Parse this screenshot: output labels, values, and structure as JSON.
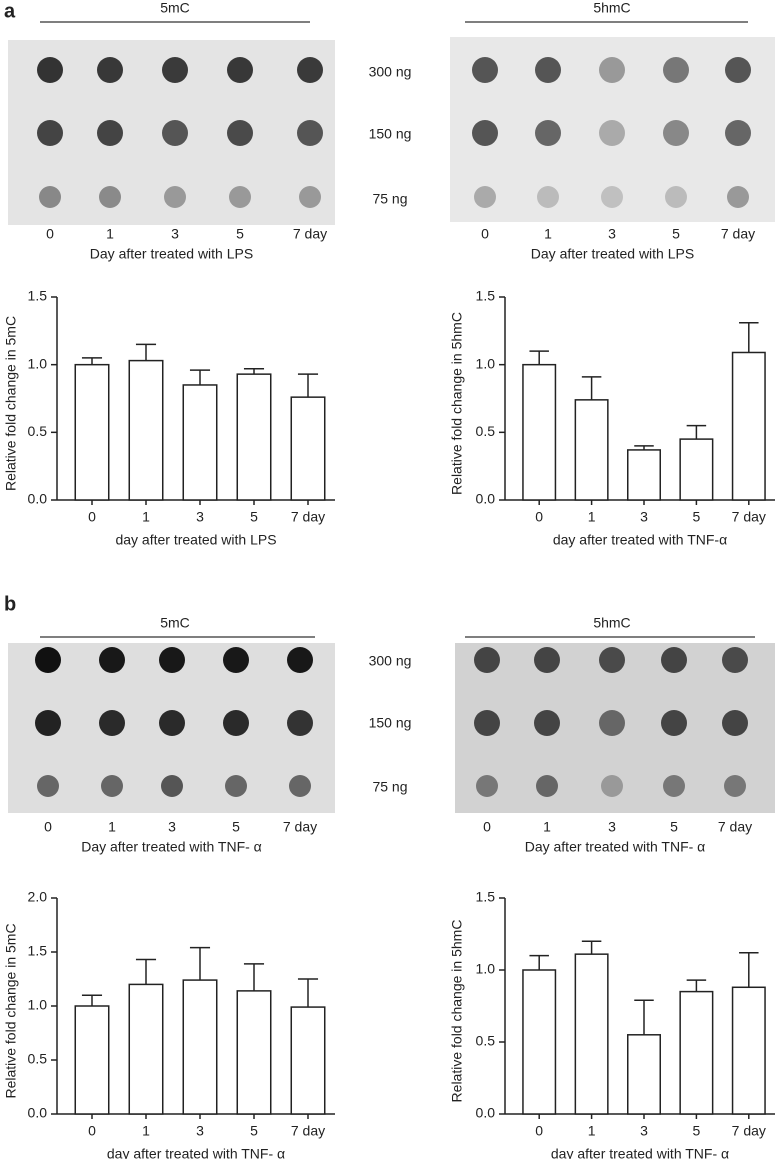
{
  "panels": [
    {
      "label": "a",
      "rows": [
        "300 ng",
        "150 ng",
        "75 ng"
      ],
      "blots": [
        {
          "title": "5mC",
          "categories": [
            "0",
            "1",
            "3",
            "5",
            "7 day"
          ],
          "xlabel": "Day after treated with LPS"
        },
        {
          "title": "5hmC",
          "categories": [
            "0",
            "1",
            "3",
            "5",
            "7 day"
          ],
          "xlabel": "Day after treated with LPS"
        }
      ]
    },
    {
      "label": "b",
      "rows": [
        "300 ng",
        "150 ng",
        "75 ng"
      ],
      "blots": [
        {
          "title": "5mC",
          "categories": [
            "0",
            "1",
            "3",
            "5",
            "7 day"
          ],
          "xlabel": "Day after treated with TNF- α"
        },
        {
          "title": "5hmC",
          "categories": [
            "0",
            "1",
            "3",
            "5",
            "7 day"
          ],
          "xlabel": "Day after treated with TNF- α"
        }
      ]
    }
  ],
  "chart_data": [
    {
      "type": "bar",
      "categories": [
        "0",
        "1",
        "3",
        "5",
        "7 day"
      ],
      "values": [
        1.0,
        1.03,
        0.85,
        0.93,
        0.76
      ],
      "errors": [
        0.05,
        0.12,
        0.11,
        0.04,
        0.17
      ],
      "ylabel": "Relative fold change in 5mC",
      "xlabel": "day after treated with LPS",
      "color": "#ffffff",
      "ylim": [
        0,
        1.5
      ],
      "yticks": [
        {
          "value": 0,
          "label": "0.0"
        },
        {
          "value": 0.5,
          "label": "0.5"
        },
        {
          "value": 1,
          "label": "1.0"
        },
        {
          "value": 1.5,
          "label": "1.5"
        }
      ]
    },
    {
      "type": "bar",
      "categories": [
        "0",
        "1",
        "3",
        "5",
        "7 day"
      ],
      "values": [
        1.0,
        0.74,
        0.37,
        0.45,
        1.09
      ],
      "errors": [
        0.1,
        0.17,
        0.03,
        0.1,
        0.22
      ],
      "ylabel": "Relative fold change in 5hmC",
      "xlabel": "day after treated with TNF-α",
      "color": "#ffffff",
      "ylim": [
        0,
        1.5
      ],
      "yticks": [
        {
          "value": 0,
          "label": "0.0"
        },
        {
          "value": 0.5,
          "label": "0.5"
        },
        {
          "value": 1,
          "label": "1.0"
        },
        {
          "value": 1.5,
          "label": "1.5"
        }
      ]
    },
    {
      "type": "bar",
      "categories": [
        "0",
        "1",
        "3",
        "5",
        "7 day"
      ],
      "values": [
        1.0,
        1.2,
        1.24,
        1.14,
        0.99
      ],
      "errors": [
        0.1,
        0.23,
        0.3,
        0.25,
        0.26
      ],
      "ylabel": "Relative fold change in 5mC",
      "xlabel": "day after treated with TNF- α",
      "color": "#ffffff",
      "ylim": [
        0,
        2
      ],
      "yticks": [
        {
          "value": 0,
          "label": "0.0"
        },
        {
          "value": 0.5,
          "label": "0.5"
        },
        {
          "value": 1,
          "label": "1.0"
        },
        {
          "value": 1.5,
          "label": "1.5"
        },
        {
          "value": 2,
          "label": "2.0"
        }
      ]
    },
    {
      "type": "bar",
      "categories": [
        "0",
        "1",
        "3",
        "5",
        "7 day"
      ],
      "values": [
        1.0,
        1.11,
        0.55,
        0.85,
        0.88
      ],
      "errors": [
        0.1,
        0.09,
        0.24,
        0.08,
        0.24
      ],
      "ylabel": "Relative fold change in 5hmC",
      "xlabel": "day after treated with TNF- α",
      "color": "#ffffff",
      "ylim": [
        0,
        1.5
      ],
      "yticks": [
        {
          "value": 0,
          "label": "0.0"
        },
        {
          "value": 0.5,
          "label": "0.5"
        },
        {
          "value": 1,
          "label": "1.0"
        },
        {
          "value": 1.5,
          "label": "1.5"
        }
      ]
    }
  ]
}
